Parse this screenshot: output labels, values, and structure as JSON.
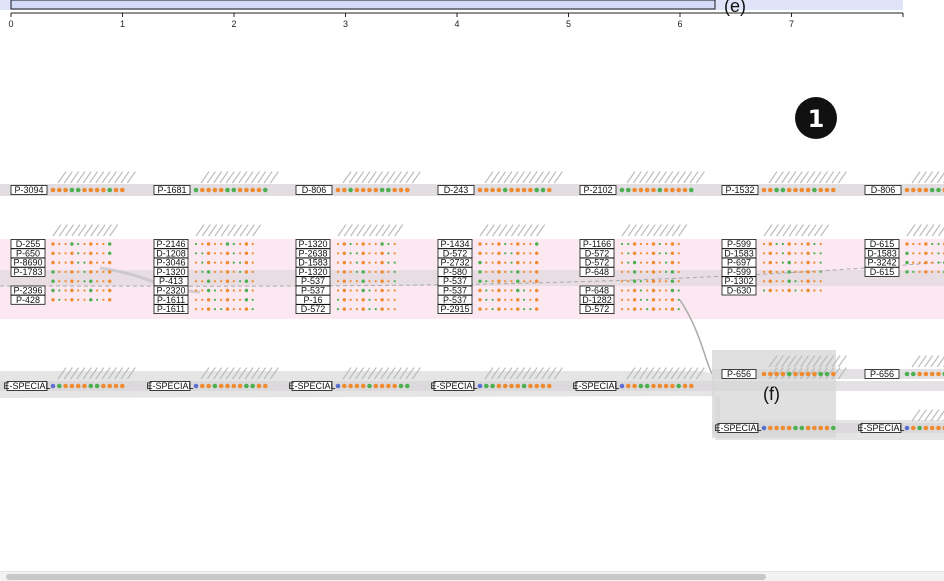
{
  "axis": {
    "ticks": [
      "0",
      "1",
      "2",
      "3",
      "4",
      "5",
      "6",
      "7"
    ],
    "annotation_e": "(e)"
  },
  "badge": "1",
  "annotation_f": "(f)",
  "special_label": "E-SPECIAL",
  "colors": {
    "orange": "#ef8a2e",
    "green": "#4caf50",
    "blue": "#5b6fd0",
    "band": "#d9d4d9",
    "pink": "#fbe8f0",
    "gray": "#e2e2e2",
    "axis_fill": "#dfe4fb"
  },
  "columns": [
    {
      "top": "P-3094",
      "group": [
        "D-255",
        "P-650",
        "P-8690",
        "P-1783",
        "",
        "P-2396",
        "P-428"
      ]
    },
    {
      "top": "P-1681",
      "group": [
        "P-2146",
        "D-1208",
        "P-3046",
        "P-1320",
        "P-413",
        "P-2320",
        "P-1611",
        "P-1611"
      ]
    },
    {
      "top": "D-806",
      "group": [
        "P-1320",
        "P-2638",
        "D-1583",
        "P-1320",
        "P-537",
        "P-537",
        "P-16",
        "D-572"
      ]
    },
    {
      "top": "D-243",
      "group": [
        "P-1434",
        "D-572",
        "P-2732",
        "P-580",
        "P-537",
        "P-537",
        "P-537",
        "P-2915"
      ]
    },
    {
      "top": "P-2102",
      "group": [
        "P-1166",
        "D-572",
        "D-572",
        "P-648",
        "",
        "P-648",
        "D-1282",
        "D-572"
      ]
    },
    {
      "top": "P-1532",
      "group": [
        "P-599",
        "D-1583",
        "P-697",
        "P-599",
        "P-1302",
        "D-630"
      ],
      "extra": "P-656"
    },
    {
      "top": "D-806",
      "group": [
        "D-615",
        "D-1583",
        "P-3242",
        "D-615"
      ],
      "extra": "P-656"
    }
  ]
}
